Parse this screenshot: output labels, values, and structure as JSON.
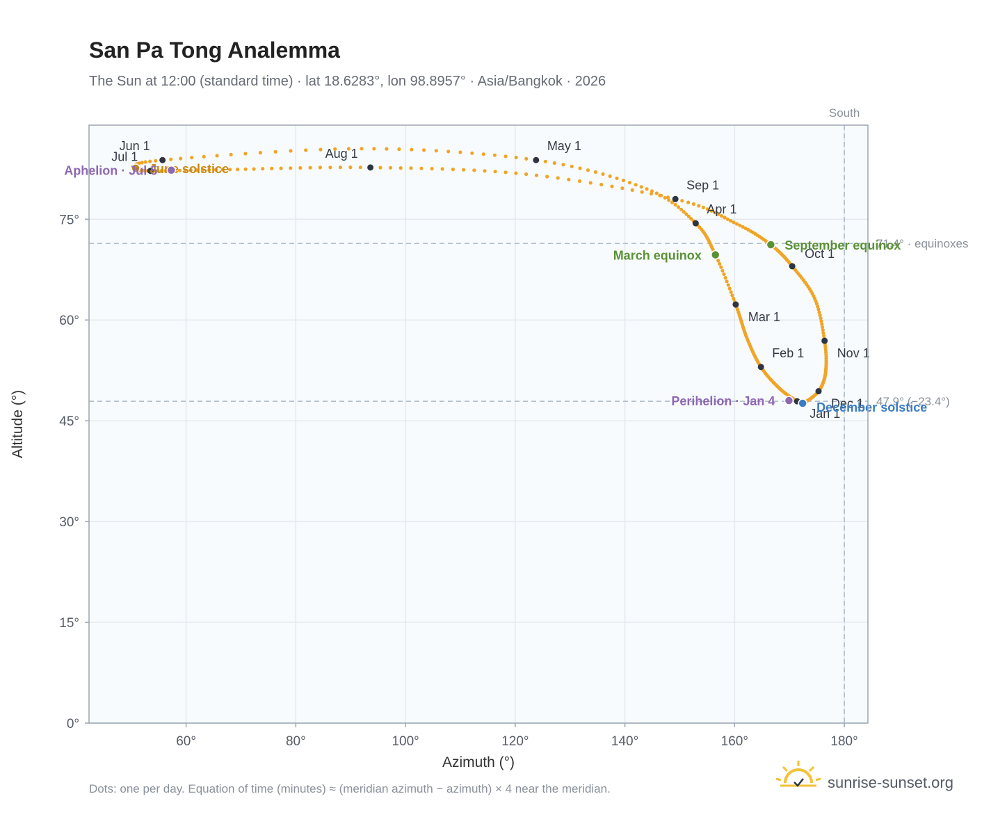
{
  "title": "San Pa Tong Analemma",
  "subtitle": "The Sun at 12:00 (standard time) · lat 18.6283°, lon 98.8957° · Asia/Bangkok · 2026",
  "footnote": "Dots: one per day. Equation of time (minutes) ≈ (meridian azimuth − azimuth) × 4 near the meridian.",
  "brand": "sunrise-sunset.org",
  "colors": {
    "path": "#f0a526",
    "month_dot": "#2f3540",
    "equinox": "#5a9135",
    "solstice_june": "#c98a12",
    "solstice_december": "#3b7cc4",
    "apsis": "#8e68b3",
    "plot_bg": "#f8fbfd",
    "grid": "#e3e9ef",
    "frame": "#9aa5b1",
    "reference": "#a8b8c8"
  },
  "chart_data": {
    "type": "scatter",
    "xlabel": "Azimuth (°)",
    "ylabel": "Altitude (°)",
    "xlim": [
      42.3,
      184.3
    ],
    "ylim": [
      0,
      89
    ],
    "xticks": [
      {
        "value": 60,
        "label": "60°"
      },
      {
        "value": 80,
        "label": "80°"
      },
      {
        "value": 100,
        "label": "100°"
      },
      {
        "value": 120,
        "label": "120°"
      },
      {
        "value": 140,
        "label": "140°"
      },
      {
        "value": 160,
        "label": "160°"
      },
      {
        "value": 180,
        "label": "180°"
      }
    ],
    "yticks": [
      {
        "value": 0,
        "label": "0°"
      },
      {
        "value": 15,
        "label": "15°"
      },
      {
        "value": 30,
        "label": "30°"
      },
      {
        "value": 45,
        "label": "45°"
      },
      {
        "value": 60,
        "label": "60°"
      },
      {
        "value": 75,
        "label": "75°"
      }
    ],
    "grid": true,
    "reference_lines": [
      {
        "axis": "x",
        "value": 180,
        "label": "South"
      },
      {
        "axis": "y",
        "value": 71.4,
        "label": "71.4° · equinoxes"
      },
      {
        "axis": "y",
        "value": 47.9,
        "label": "47.9° (−23.4°)"
      }
    ],
    "path_keypoints": [
      {
        "date": "Jan 1",
        "az": 171.4,
        "alt": 47.9
      },
      {
        "date": "Jan 16",
        "az": 168.2,
        "alt": 49.8
      },
      {
        "date": "Feb 1",
        "az": 164.8,
        "alt": 53.0
      },
      {
        "date": "Feb 15",
        "az": 162.2,
        "alt": 57.4
      },
      {
        "date": "Mar 1",
        "az": 160.2,
        "alt": 62.3
      },
      {
        "date": "Mar 20",
        "az": 156.5,
        "alt": 69.7
      },
      {
        "date": "Apr 1",
        "az": 152.9,
        "alt": 74.4
      },
      {
        "date": "Apr 15",
        "az": 144.0,
        "alt": 79.5
      },
      {
        "date": "May 1",
        "az": 123.8,
        "alt": 83.8
      },
      {
        "date": "May 15",
        "az": 92.0,
        "alt": 85.5
      },
      {
        "date": "Jun 1",
        "az": 55.7,
        "alt": 83.8
      },
      {
        "date": "Jun 21",
        "az": 50.8,
        "alt": 82.6
      },
      {
        "date": "Jul 1",
        "az": 53.5,
        "alt": 82.2
      },
      {
        "date": "Jul 15",
        "az": 68.0,
        "alt": 82.4
      },
      {
        "date": "Aug 1",
        "az": 93.6,
        "alt": 82.7
      },
      {
        "date": "Aug 15",
        "az": 122.0,
        "alt": 81.7
      },
      {
        "date": "Sep 1",
        "az": 149.2,
        "alt": 78.0
      },
      {
        "date": "Sep 15",
        "az": 160.4,
        "alt": 74.3
      },
      {
        "date": "Sep 23",
        "az": 166.6,
        "alt": 71.2
      },
      {
        "date": "Oct 1",
        "az": 170.5,
        "alt": 68.0
      },
      {
        "date": "Oct 15",
        "az": 174.6,
        "alt": 63.2
      },
      {
        "date": "Nov 1",
        "az": 176.4,
        "alt": 56.9
      },
      {
        "date": "Nov 15",
        "az": 176.6,
        "alt": 52.3
      },
      {
        "date": "Dec 1",
        "az": 175.3,
        "alt": 49.4
      },
      {
        "date": "Dec 21",
        "az": 172.4,
        "alt": 47.6
      }
    ],
    "month_markers": [
      {
        "label": "Jan 1",
        "az": 171.4,
        "alt": 47.9,
        "anchor": "below-right"
      },
      {
        "label": "Feb 1",
        "az": 164.8,
        "alt": 53.0,
        "anchor": "above-right"
      },
      {
        "label": "Mar 1",
        "az": 160.2,
        "alt": 62.3,
        "anchor": "below-right"
      },
      {
        "label": "Apr 1",
        "az": 152.9,
        "alt": 74.4,
        "anchor": "above-right"
      },
      {
        "label": "May 1",
        "az": 123.8,
        "alt": 83.8,
        "anchor": "above-right"
      },
      {
        "label": "Jun 1",
        "az": 55.7,
        "alt": 83.8,
        "anchor": "above-left"
      },
      {
        "label": "Jul 1",
        "az": 53.5,
        "alt": 82.2,
        "anchor": "above-left"
      },
      {
        "label": "Aug 1",
        "az": 93.6,
        "alt": 82.7,
        "anchor": "above-left"
      },
      {
        "label": "Sep 1",
        "az": 149.2,
        "alt": 78.0,
        "anchor": "above-right"
      },
      {
        "label": "Oct 1",
        "az": 170.5,
        "alt": 68.0,
        "anchor": "right"
      },
      {
        "label": "Nov 1",
        "az": 176.4,
        "alt": 56.9,
        "anchor": "below-right"
      },
      {
        "label": "Dec 1",
        "az": 175.3,
        "alt": 49.4,
        "anchor": "below-right"
      }
    ],
    "events": [
      {
        "label": "March equinox",
        "az": 156.5,
        "alt": 69.7,
        "color": "#5a9135",
        "anchor": "left"
      },
      {
        "label": "September equinox",
        "az": 166.6,
        "alt": 71.2,
        "color": "#5a9135",
        "anchor": "right"
      },
      {
        "label": "June solstice",
        "az": 50.8,
        "alt": 82.6,
        "color": "#c98a12",
        "anchor": "right"
      },
      {
        "label": "December solstice",
        "az": 172.4,
        "alt": 47.6,
        "color": "#3b7cc4",
        "anchor": "below-right"
      },
      {
        "label": "Aphelion · Jul 5",
        "az": 57.3,
        "alt": 82.3,
        "color": "#8e68b3",
        "anchor": "left"
      },
      {
        "label": "Perihelion · Jan 4",
        "az": 169.9,
        "alt": 48.0,
        "color": "#8e68b3",
        "anchor": "left"
      }
    ]
  }
}
